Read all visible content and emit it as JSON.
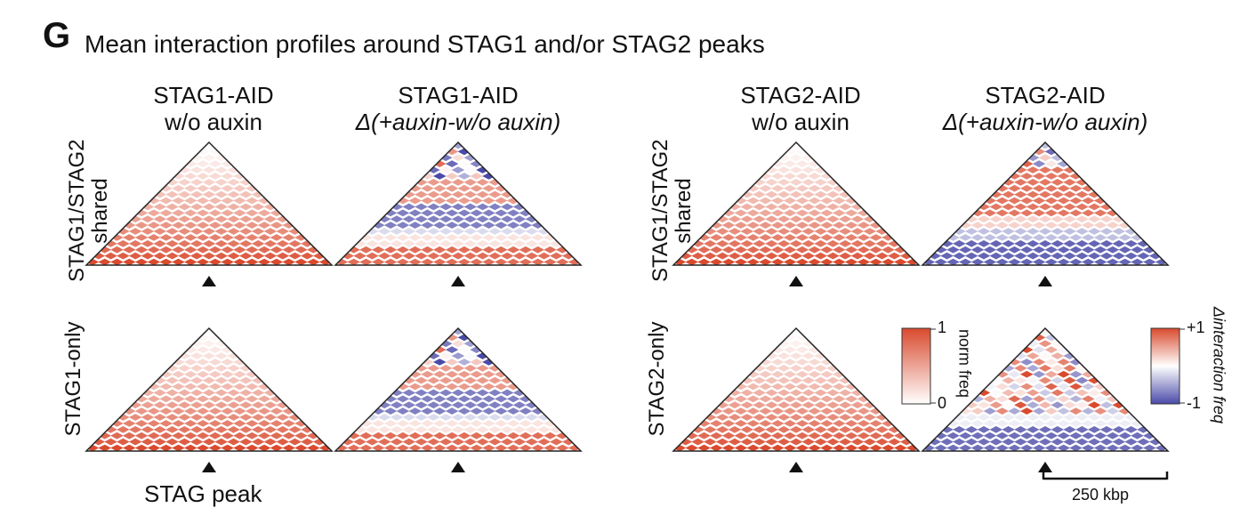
{
  "figure": {
    "panel_letter": "G",
    "title": "Mean interaction profiles around STAG1 and/or STAG2 peaks",
    "columns": [
      {
        "line1": "STAG1-AID",
        "line2": "w/o auxin"
      },
      {
        "line1": "STAG1-AID",
        "line2": "Δ(+auxin-w/o auxin)"
      },
      {
        "line1": "STAG2-AID",
        "line2": "w/o auxin"
      },
      {
        "line1": "STAG2-AID",
        "line2": "Δ(+auxin-w/o auxin)"
      }
    ],
    "rows": [
      {
        "line1": "STAG1/STAG2",
        "line2": "shared"
      },
      {
        "line1": "STAG1-only",
        "line2": ""
      },
      {
        "line1": "STAG1/STAG2",
        "line2": "shared"
      },
      {
        "line1": "STAG2-only",
        "line2": ""
      }
    ],
    "peak_label": "STAG peak",
    "scale_bar_label": "250 kbp",
    "colorbars": [
      {
        "title": "norm freq",
        "max_label": "1",
        "min_label": "0",
        "colors": [
          "#ffffff",
          "#d94a2e"
        ]
      },
      {
        "title": "Δinteraction freq",
        "max_label": "+1",
        "min_label": "-1",
        "colors": [
          "#4a4aa8",
          "#ffffff",
          "#d94a2e"
        ]
      }
    ],
    "triangle_fill": "#d94a2e",
    "diverging_colors": {
      "neg": "#4a4aa8",
      "mid": "#ffffff",
      "pos": "#d94a2e"
    }
  }
}
